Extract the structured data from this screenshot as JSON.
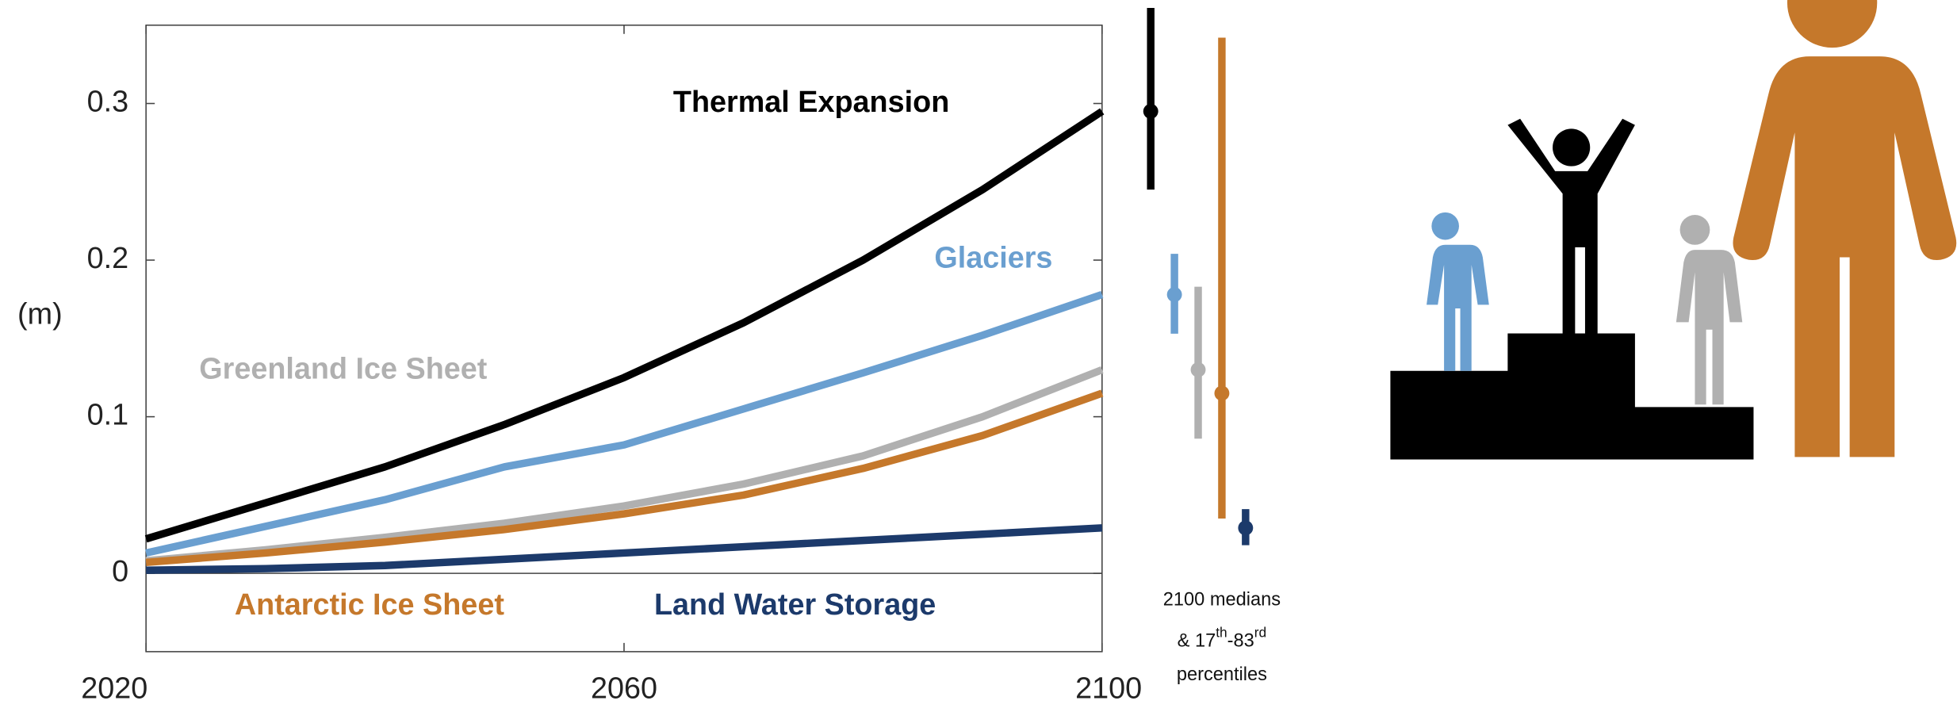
{
  "chart_data": {
    "type": "line",
    "y_label": "(m)",
    "x": [
      2020,
      2030,
      2040,
      2050,
      2060,
      2070,
      2080,
      2090,
      2100
    ],
    "xlim": [
      2020,
      2100
    ],
    "xticks": [
      2020,
      2060,
      2100
    ],
    "ylim": [
      -0.05,
      0.35
    ],
    "yticks": [
      0,
      0.1,
      0.2,
      0.3
    ],
    "series": [
      {
        "name": "Thermal Expansion",
        "color": "#000000",
        "values": [
          0.022,
          0.045,
          0.068,
          0.095,
          0.125,
          0.16,
          0.2,
          0.245,
          0.295
        ],
        "median": 0.295,
        "range": [
          0.245,
          0.361
        ]
      },
      {
        "name": "Glaciers",
        "color": "#6a9fd0",
        "values": [
          0.013,
          0.03,
          0.047,
          0.068,
          0.082,
          0.105,
          0.128,
          0.152,
          0.178
        ],
        "median": 0.178,
        "range": [
          0.153,
          0.204
        ]
      },
      {
        "name": "Greenland Ice Sheet",
        "color": "#b0b0b0",
        "values": [
          0.008,
          0.015,
          0.023,
          0.032,
          0.043,
          0.057,
          0.075,
          0.1,
          0.13
        ],
        "median": 0.13,
        "range": [
          0.086,
          0.183
        ]
      },
      {
        "name": "Antarctic Ice Sheet",
        "color": "#c5782b",
        "values": [
          0.007,
          0.013,
          0.02,
          0.028,
          0.038,
          0.05,
          0.067,
          0.088,
          0.115
        ],
        "median": 0.115,
        "range": [
          0.035,
          0.342
        ]
      },
      {
        "name": "Land Water Storage",
        "color": "#1c3a6b",
        "values": [
          0.002,
          0.003,
          0.005,
          0.009,
          0.013,
          0.017,
          0.021,
          0.025,
          0.029
        ],
        "median": 0.029,
        "range": [
          0.018,
          0.041
        ]
      }
    ],
    "annotation": {
      "line1": "2100 medians",
      "line2": [
        "& 17",
        "th",
        "-83",
        "rd"
      ],
      "line3": "percentiles"
    }
  }
}
